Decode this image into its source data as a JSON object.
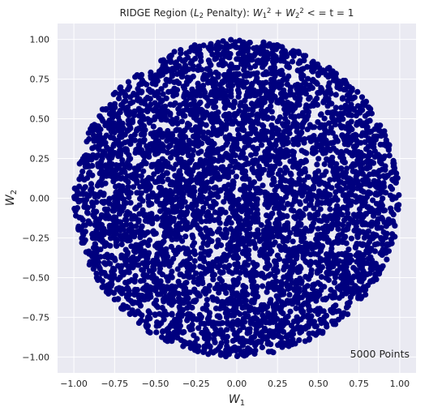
{
  "chart_data": {
    "type": "scatter",
    "title": "RIDGE Region (L2 Penalty): W1^2 + W2^2 <= t = 1",
    "title_parts": {
      "prefix": "RIDGE Region (",
      "penalty_symbol": "L",
      "penalty_sub": "2",
      "middle": " Penalty): ",
      "w1": "W",
      "w1_sub": "1",
      "w1_sup": "2",
      "plus": " + ",
      "w2": "W",
      "w2_sub": "2",
      "w2_sup": "2",
      "constraint": " < = t = 1"
    },
    "xlabel": "W1",
    "xlabel_parts": {
      "symbol": "W",
      "sub": "1"
    },
    "ylabel": "W2",
    "ylabel_parts": {
      "symbol": "W",
      "sub": "2"
    },
    "xlim": [
      -1.1,
      1.1
    ],
    "ylim": [
      -1.1,
      1.1
    ],
    "xticks": [
      -1.0,
      -0.75,
      -0.5,
      -0.25,
      0.0,
      0.25,
      0.5,
      0.75,
      1.0
    ],
    "xtick_labels": [
      "−1.00",
      "−0.75",
      "−0.50",
      "−0.25",
      "0.00",
      "0.25",
      "0.50",
      "0.75",
      "1.00"
    ],
    "yticks": [
      -1.0,
      -0.75,
      -0.5,
      -0.25,
      0.0,
      0.25,
      0.5,
      0.75,
      1.0
    ],
    "ytick_labels": [
      "−1.00",
      "−0.75",
      "−0.50",
      "−0.25",
      "0.00",
      "0.25",
      "0.50",
      "0.75",
      "1.00"
    ],
    "grid": true,
    "annotation": "5000 Points",
    "annotation_position": "bottom-right",
    "point_count": 5000,
    "region": {
      "shape": "disk",
      "center": [
        0,
        0
      ],
      "radius": 1.0
    },
    "colors": {
      "points": "#00007f",
      "plot_background": "#eaeaf2",
      "grid": "#ffffff",
      "text": "#262626"
    }
  }
}
